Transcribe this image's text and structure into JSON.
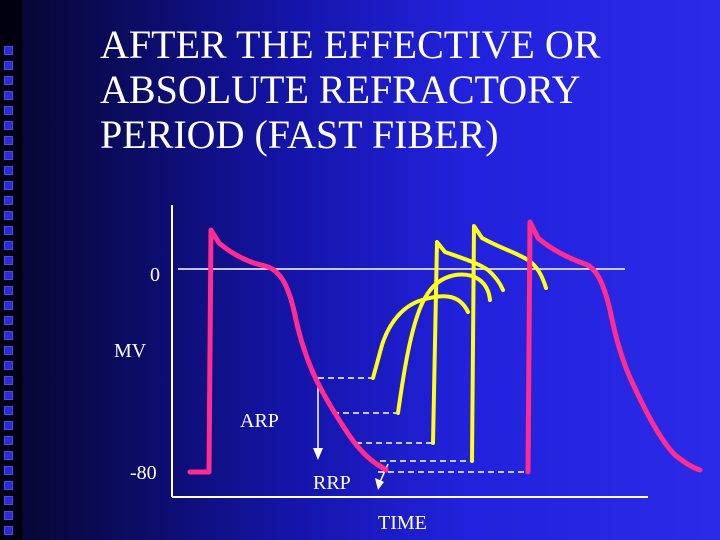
{
  "slide": {
    "title_lines": [
      "AFTER THE EFFECTIVE OR",
      "ABSOLUTE REFRACTORY",
      "PERIOD (FAST FIBER)"
    ]
  },
  "diagram": {
    "label_zero": "0",
    "label_mv": "MV",
    "label_minus80": "-80",
    "label_arp": "ARP",
    "label_rrp": "RRP",
    "label_time": "TIME"
  },
  "colors": {
    "pink_trace": "#ff2d8f",
    "yellow_trace": "#ffff1a",
    "axis": "#ffffff",
    "dash": "#ffffff"
  }
}
